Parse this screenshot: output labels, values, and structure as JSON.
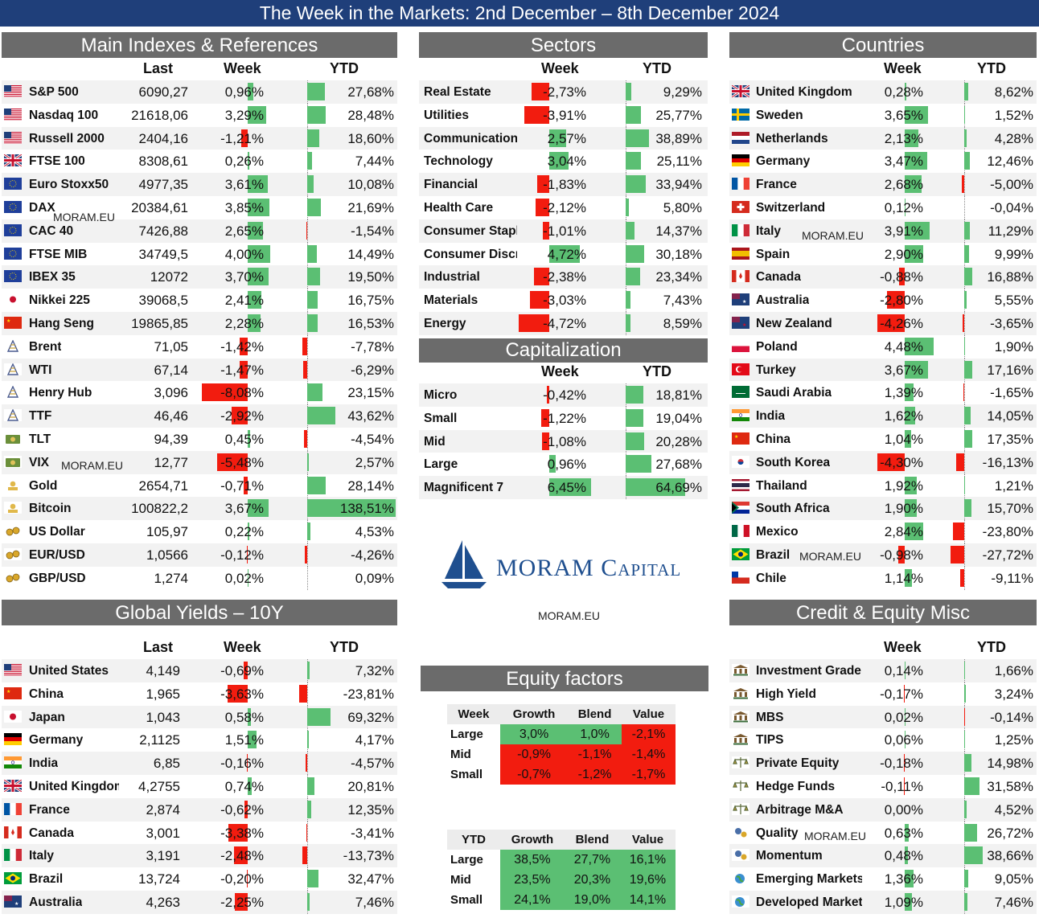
{
  "title": "The Week in the Markets: 2nd December – 8th December 2024",
  "colors": {
    "pos": "#5bbf73",
    "neg": "#f21c0f",
    "header": "#6b6b6b",
    "title_bg": "#1f3f7a"
  },
  "watermark": "MORAM.EU",
  "logo": {
    "text": "MORAM Capital",
    "url": "MORAM.EU"
  },
  "main": {
    "title": "Main Indexes & References",
    "headers": {
      "last": "Last",
      "week": "Week",
      "ytd": "YTD"
    },
    "rows": [
      {
        "name": "S&P 500",
        "last": "6090,27",
        "week": "0,96%",
        "ytd": "27,68%",
        "w": 0.96,
        "y": 27.68,
        "icon": "us-flag-icon"
      },
      {
        "name": "Nasdaq 100",
        "last": "21618,06",
        "week": "3,29%",
        "ytd": "28,48%",
        "w": 3.29,
        "y": 28.48,
        "icon": "us-flag-icon"
      },
      {
        "name": "Russell 2000",
        "last": "2404,16",
        "week": "-1,21%",
        "ytd": "18,60%",
        "w": -1.21,
        "y": 18.6,
        "icon": "us-flag-icon"
      },
      {
        "name": "FTSE 100",
        "last": "8308,61",
        "week": "0,26%",
        "ytd": "7,44%",
        "w": 0.26,
        "y": 7.44,
        "icon": "uk-flag-icon"
      },
      {
        "name": "Euro Stoxx50",
        "last": "4977,35",
        "week": "3,61%",
        "ytd": "10,08%",
        "w": 3.61,
        "y": 10.08,
        "icon": "eu-flag-icon"
      },
      {
        "name": "DAX",
        "last": "20384,61",
        "week": "3,85%",
        "ytd": "21,69%",
        "w": 3.85,
        "y": 21.69,
        "icon": "eu-flag-icon"
      },
      {
        "name": "CAC 40",
        "last": "7426,88",
        "week": "2,65%",
        "ytd": "-1,54%",
        "w": 2.65,
        "y": -1.54,
        "icon": "eu-flag-icon"
      },
      {
        "name": "FTSE MIB",
        "last": "34749,5",
        "week": "4,00%",
        "ytd": "14,49%",
        "w": 4.0,
        "y": 14.49,
        "icon": "eu-flag-icon"
      },
      {
        "name": "IBEX 35",
        "last": "12072",
        "week": "3,70%",
        "ytd": "19,50%",
        "w": 3.7,
        "y": 19.5,
        "icon": "eu-flag-icon"
      },
      {
        "name": "Nikkei 225",
        "last": "39068,5",
        "week": "2,41%",
        "ytd": "16,75%",
        "w": 2.41,
        "y": 16.75,
        "icon": "japan-flag-icon"
      },
      {
        "name": "Hang Seng",
        "last": "19865,85",
        "week": "2,28%",
        "ytd": "16,53%",
        "w": 2.28,
        "y": 16.53,
        "icon": "china-flag-icon"
      },
      {
        "name": "Brent",
        "last": "71,05",
        "week": "-1,42%",
        "ytd": "-7,78%",
        "w": -1.42,
        "y": -7.78,
        "icon": "oil-rig-icon"
      },
      {
        "name": "WTI",
        "last": "67,14",
        "week": "-1,47%",
        "ytd": "-6,29%",
        "w": -1.47,
        "y": -6.29,
        "icon": "oil-rig-icon"
      },
      {
        "name": "Henry Hub",
        "last": "3,096",
        "week": "-8,08%",
        "ytd": "23,15%",
        "w": -8.08,
        "y": 23.15,
        "icon": "oil-rig-icon"
      },
      {
        "name": "TTF",
        "last": "46,46",
        "week": "-2,92%",
        "ytd": "43,62%",
        "w": -2.92,
        "y": 43.62,
        "icon": "oil-rig-icon"
      },
      {
        "name": "TLT",
        "last": "94,39",
        "week": "0,45%",
        "ytd": "-4,54%",
        "w": 0.45,
        "y": -4.54,
        "icon": "bond-icon"
      },
      {
        "name": "VIX",
        "last": "12,77",
        "week": "-5,48%",
        "ytd": "2,57%",
        "w": -5.48,
        "y": 2.57,
        "icon": "bond-icon"
      },
      {
        "name": "Gold",
        "last": "2654,71",
        "week": "-0,71%",
        "ytd": "28,14%",
        "w": -0.71,
        "y": 28.14,
        "icon": "gold-icon"
      },
      {
        "name": "Bitcoin",
        "last": "100822,2",
        "week": "3,67%",
        "ytd": "138,51%",
        "w": 3.67,
        "y": 138.51,
        "icon": "gold-icon"
      },
      {
        "name": "US Dollar",
        "last": "105,97",
        "week": "0,22%",
        "ytd": "4,53%",
        "w": 0.22,
        "y": 4.53,
        "icon": "coins-icon"
      },
      {
        "name": "EUR/USD",
        "last": "1,0566",
        "week": "-0,12%",
        "ytd": "-4,26%",
        "w": -0.12,
        "y": -4.26,
        "icon": "coins-icon"
      },
      {
        "name": "GBP/USD",
        "last": "1,274",
        "week": "0,02%",
        "ytd": "0,09%",
        "w": 0.02,
        "y": 0.09,
        "icon": "coins-icon"
      }
    ]
  },
  "yields": {
    "title": "Global Yields – 10Y",
    "headers": {
      "last": "Last",
      "week": "Week",
      "ytd": "YTD"
    },
    "rows": [
      {
        "name": "United States",
        "last": "4,149",
        "week": "-0,69%",
        "ytd": "7,32%",
        "w": -0.69,
        "y": 7.32,
        "icon": "us-flag-icon"
      },
      {
        "name": "China",
        "last": "1,965",
        "week": "-3,63%",
        "ytd": "-23,81%",
        "w": -3.63,
        "y": -23.81,
        "icon": "china-flag-icon"
      },
      {
        "name": "Japan",
        "last": "1,043",
        "week": "0,58%",
        "ytd": "69,32%",
        "w": 0.58,
        "y": 69.32,
        "icon": "japan-flag-icon"
      },
      {
        "name": "Germany",
        "last": "2,1125",
        "week": "1,51%",
        "ytd": "4,17%",
        "w": 1.51,
        "y": 4.17,
        "icon": "germany-flag-icon"
      },
      {
        "name": "India",
        "last": "6,85",
        "week": "-0,16%",
        "ytd": "-4,57%",
        "w": -0.16,
        "y": -4.57,
        "icon": "india-flag-icon"
      },
      {
        "name": "United Kingdom",
        "last": "4,2755",
        "week": "0,74%",
        "ytd": "20,81%",
        "w": 0.74,
        "y": 20.81,
        "icon": "uk-flag-icon"
      },
      {
        "name": "France",
        "last": "2,874",
        "week": "-0,62%",
        "ytd": "12,35%",
        "w": -0.62,
        "y": 12.35,
        "icon": "france-flag-icon"
      },
      {
        "name": "Canada",
        "last": "3,001",
        "week": "-3,38%",
        "ytd": "-3,41%",
        "w": -3.38,
        "y": -3.41,
        "icon": "canada-flag-icon"
      },
      {
        "name": "Italy",
        "last": "3,191",
        "week": "-2,48%",
        "ytd": "-13,73%",
        "w": -2.48,
        "y": -13.73,
        "icon": "italy-flag-icon"
      },
      {
        "name": "Brazil",
        "last": "13,724",
        "week": "-0,20%",
        "ytd": "32,47%",
        "w": -0.2,
        "y": 32.47,
        "icon": "brazil-flag-icon"
      },
      {
        "name": "Australia",
        "last": "4,263",
        "week": "-2,25%",
        "ytd": "7,46%",
        "w": -2.25,
        "y": 7.46,
        "icon": "australia-flag-icon"
      }
    ]
  },
  "sectors": {
    "title": "Sectors",
    "headers": {
      "week": "Week",
      "ytd": "YTD"
    },
    "rows": [
      {
        "name": "Real Estate",
        "week": "-2,73%",
        "ytd": "9,29%",
        "w": -2.73,
        "y": 9.29
      },
      {
        "name": "Utilities",
        "week": "-3,91%",
        "ytd": "25,77%",
        "w": -3.91,
        "y": 25.77
      },
      {
        "name": "Communication",
        "week": "2,57%",
        "ytd": "38,89%",
        "w": 2.57,
        "y": 38.89
      },
      {
        "name": "Technology",
        "week": "3,04%",
        "ytd": "25,11%",
        "w": 3.04,
        "y": 25.11
      },
      {
        "name": "Financial",
        "week": "-1,83%",
        "ytd": "33,94%",
        "w": -1.83,
        "y": 33.94
      },
      {
        "name": "Health Care",
        "week": "-2,12%",
        "ytd": "5,80%",
        "w": -2.12,
        "y": 5.8
      },
      {
        "name": "Consumer Staple",
        "week": "-1,01%",
        "ytd": "14,37%",
        "w": -1.01,
        "y": 14.37
      },
      {
        "name": "Consumer Discre",
        "week": "4,72%",
        "ytd": "30,18%",
        "w": 4.72,
        "y": 30.18
      },
      {
        "name": "Industrial",
        "week": "-2,38%",
        "ytd": "23,34%",
        "w": -2.38,
        "y": 23.34
      },
      {
        "name": "Materials",
        "week": "-3,03%",
        "ytd": "7,43%",
        "w": -3.03,
        "y": 7.43
      },
      {
        "name": "Energy",
        "week": "-4,72%",
        "ytd": "8,59%",
        "w": -4.72,
        "y": 8.59
      }
    ]
  },
  "cap": {
    "title": "Capitalization",
    "headers": {
      "week": "Week",
      "ytd": "YTD"
    },
    "rows": [
      {
        "name": "Micro",
        "week": "-0,42%",
        "ytd": "18,81%",
        "w": -0.42,
        "y": 18.81
      },
      {
        "name": "Small",
        "week": "-1,22%",
        "ytd": "19,04%",
        "w": -1.22,
        "y": 19.04
      },
      {
        "name": "Mid",
        "week": "-1,08%",
        "ytd": "20,28%",
        "w": -1.08,
        "y": 20.28
      },
      {
        "name": "Large",
        "week": "0,96%",
        "ytd": "27,68%",
        "w": 0.96,
        "y": 27.68
      },
      {
        "name": "Magnificent 7",
        "week": "6,45%",
        "ytd": "64,69%",
        "w": 6.45,
        "y": 64.69
      }
    ]
  },
  "countries": {
    "title": "Countries",
    "headers": {
      "week": "Week",
      "ytd": "YTD"
    },
    "rows": [
      {
        "name": "United Kingdom",
        "week": "0,28%",
        "ytd": "8,62%",
        "w": 0.28,
        "y": 8.62,
        "icon": "uk-flag-icon"
      },
      {
        "name": "Sweden",
        "week": "3,65%",
        "ytd": "1,52%",
        "w": 3.65,
        "y": 1.52,
        "icon": "sweden-flag-icon"
      },
      {
        "name": "Netherlands",
        "week": "2,13%",
        "ytd": "4,28%",
        "w": 2.13,
        "y": 4.28,
        "icon": "netherlands-flag-icon"
      },
      {
        "name": "Germany",
        "week": "3,47%",
        "ytd": "12,46%",
        "w": 3.47,
        "y": 12.46,
        "icon": "germany-flag-icon"
      },
      {
        "name": "France",
        "week": "2,68%",
        "ytd": "-5,00%",
        "w": 2.68,
        "y": -5.0,
        "icon": "france-flag-icon"
      },
      {
        "name": "Switzerland",
        "week": "0,12%",
        "ytd": "-0,04%",
        "w": 0.12,
        "y": -0.04,
        "icon": "switzerland-flag-icon"
      },
      {
        "name": "Italy",
        "week": "3,91%",
        "ytd": "11,29%",
        "w": 3.91,
        "y": 11.29,
        "icon": "italy-flag-icon"
      },
      {
        "name": "Spain",
        "week": "2,90%",
        "ytd": "9,99%",
        "w": 2.9,
        "y": 9.99,
        "icon": "spain-flag-icon"
      },
      {
        "name": "Canada",
        "week": "-0,88%",
        "ytd": "16,88%",
        "w": -0.88,
        "y": 16.88,
        "icon": "canada-flag-icon"
      },
      {
        "name": "Australia",
        "week": "-2,80%",
        "ytd": "5,55%",
        "w": -2.8,
        "y": 5.55,
        "icon": "australia-flag-icon"
      },
      {
        "name": "New Zealand",
        "week": "-4,26%",
        "ytd": "-3,65%",
        "w": -4.26,
        "y": -3.65,
        "icon": "newzealand-flag-icon"
      },
      {
        "name": "Poland",
        "week": "4,48%",
        "ytd": "1,90%",
        "w": 4.48,
        "y": 1.9,
        "icon": "poland-flag-icon"
      },
      {
        "name": "Turkey",
        "week": "3,67%",
        "ytd": "17,16%",
        "w": 3.67,
        "y": 17.16,
        "icon": "turkey-flag-icon"
      },
      {
        "name": "Saudi Arabia",
        "week": "1,39%",
        "ytd": "-1,65%",
        "w": 1.39,
        "y": -1.65,
        "icon": "saudi-flag-icon"
      },
      {
        "name": "India",
        "week": "1,62%",
        "ytd": "14,05%",
        "w": 1.62,
        "y": 14.05,
        "icon": "india-flag-icon"
      },
      {
        "name": "China",
        "week": "1,04%",
        "ytd": "17,35%",
        "w": 1.04,
        "y": 17.35,
        "icon": "china-flag-icon"
      },
      {
        "name": "South Korea",
        "week": "-4,30%",
        "ytd": "-16,13%",
        "w": -4.3,
        "y": -16.13,
        "icon": "korea-flag-icon"
      },
      {
        "name": "Thailand",
        "week": "1,92%",
        "ytd": "1,21%",
        "w": 1.92,
        "y": 1.21,
        "icon": "thailand-flag-icon"
      },
      {
        "name": "South Africa",
        "week": "1,90%",
        "ytd": "15,70%",
        "w": 1.9,
        "y": 15.7,
        "icon": "southafrica-flag-icon"
      },
      {
        "name": "Mexico",
        "week": "2,84%",
        "ytd": "-23,80%",
        "w": 2.84,
        "y": -23.8,
        "icon": "mexico-flag-icon"
      },
      {
        "name": "Brazil",
        "week": "-0,98%",
        "ytd": "-27,72%",
        "w": -0.98,
        "y": -27.72,
        "icon": "brazil-flag-icon"
      },
      {
        "name": "Chile",
        "week": "1,14%",
        "ytd": "-9,11%",
        "w": 1.14,
        "y": -9.11,
        "icon": "chile-flag-icon"
      }
    ]
  },
  "credit": {
    "title": "Credit & Equity Misc",
    "headers": {
      "week": "Week",
      "ytd": "YTD"
    },
    "rows": [
      {
        "name": "Investment Grade",
        "week": "0,14%",
        "ytd": "1,66%",
        "w": 0.14,
        "y": 1.66,
        "icon": "bank-icon"
      },
      {
        "name": "High Yield",
        "week": "-0,17%",
        "ytd": "3,24%",
        "w": -0.17,
        "y": 3.24,
        "icon": "bank-icon"
      },
      {
        "name": "MBS",
        "week": "0,02%",
        "ytd": "-0,14%",
        "w": 0.02,
        "y": -0.14,
        "icon": "bank-icon"
      },
      {
        "name": "TIPS",
        "week": "0,06%",
        "ytd": "1,25%",
        "w": 0.06,
        "y": 1.25,
        "icon": "bank-icon"
      },
      {
        "name": "Private Equity",
        "week": "-0,18%",
        "ytd": "14,98%",
        "w": -0.18,
        "y": 14.98,
        "icon": "scales-icon"
      },
      {
        "name": "Hedge Funds",
        "week": "-0,11%",
        "ytd": "31,58%",
        "w": -0.11,
        "y": 31.58,
        "icon": "scales-icon"
      },
      {
        "name": "Arbitrage M&A",
        "week": "0,00%",
        "ytd": "4,52%",
        "w": 0.0,
        "y": 4.52,
        "icon": "scales-icon"
      },
      {
        "name": "Quality",
        "week": "0,63%",
        "ytd": "26,72%",
        "w": 0.63,
        "y": 26.72,
        "icon": "gears-icon"
      },
      {
        "name": "Momentum",
        "week": "0,48%",
        "ytd": "38,66%",
        "w": 0.48,
        "y": 38.66,
        "icon": "gears-icon"
      },
      {
        "name": "Emerging Markets",
        "week": "1,36%",
        "ytd": "9,05%",
        "w": 1.36,
        "y": 9.05,
        "icon": "globe-icon"
      },
      {
        "name": "Developed Market",
        "week": "1,09%",
        "ytd": "7,46%",
        "w": 1.09,
        "y": 7.46,
        "icon": "globe-icon"
      }
    ]
  },
  "factors": {
    "title": "Equity factors",
    "week_table": {
      "corner": "Week",
      "cols": [
        "Growth",
        "Blend",
        "Value"
      ],
      "rows": [
        {
          "label": "Large",
          "cells": [
            "3,0%",
            "1,0%",
            "-2,1%"
          ],
          "vals": [
            3.0,
            1.0,
            -2.1
          ]
        },
        {
          "label": "Mid",
          "cells": [
            "-0,9%",
            "-1,1%",
            "-1,4%"
          ],
          "vals": [
            -0.9,
            -1.1,
            -1.4
          ]
        },
        {
          "label": "Small",
          "cells": [
            "-0,7%",
            "-1,2%",
            "-1,7%"
          ],
          "vals": [
            -0.7,
            -1.2,
            -1.7
          ]
        }
      ]
    },
    "ytd_table": {
      "corner": "YTD",
      "cols": [
        "Growth",
        "Blend",
        "Value"
      ],
      "rows": [
        {
          "label": "Large",
          "cells": [
            "38,5%",
            "27,7%",
            "16,1%"
          ],
          "vals": [
            38.5,
            27.7,
            16.1
          ]
        },
        {
          "label": "Mid",
          "cells": [
            "23,5%",
            "20,3%",
            "19,6%"
          ],
          "vals": [
            23.5,
            20.3,
            19.6
          ]
        },
        {
          "label": "Small",
          "cells": [
            "24,1%",
            "19,0%",
            "14,1%"
          ],
          "vals": [
            24.1,
            19.0,
            14.1
          ]
        }
      ]
    }
  },
  "chart_data": [
    {
      "type": "table",
      "title": "Main Indexes & References",
      "columns": [
        "Last",
        "Week",
        "YTD"
      ]
    },
    {
      "type": "table",
      "title": "Sectors",
      "columns": [
        "Week",
        "YTD"
      ]
    },
    {
      "type": "table",
      "title": "Capitalization",
      "columns": [
        "Week",
        "YTD"
      ]
    },
    {
      "type": "table",
      "title": "Countries",
      "columns": [
        "Week",
        "YTD"
      ]
    },
    {
      "type": "table",
      "title": "Global Yields – 10Y",
      "columns": [
        "Last",
        "Week",
        "YTD"
      ]
    },
    {
      "type": "table",
      "title": "Credit & Equity Misc",
      "columns": [
        "Week",
        "YTD"
      ]
    },
    {
      "type": "heatmap",
      "title": "Equity factors",
      "rows": [
        "Large",
        "Mid",
        "Small"
      ],
      "cols": [
        "Growth",
        "Blend",
        "Value"
      ],
      "week": [
        [
          3.0,
          1.0,
          -2.1
        ],
        [
          -0.9,
          -1.1,
          -1.4
        ],
        [
          -0.7,
          -1.2,
          -1.7
        ]
      ],
      "ytd": [
        [
          38.5,
          27.7,
          16.1
        ],
        [
          23.5,
          20.3,
          19.6
        ],
        [
          24.1,
          19.0,
          14.1
        ]
      ]
    }
  ]
}
